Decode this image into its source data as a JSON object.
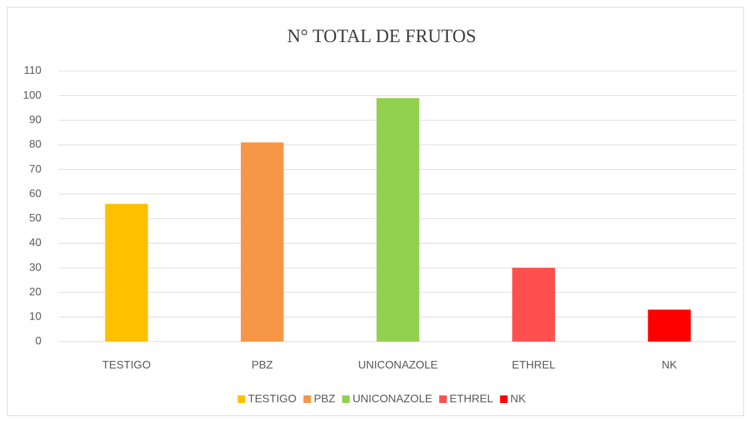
{
  "chart_data": {
    "type": "bar",
    "title": "N° TOTAL DE FRUTOS",
    "categories": [
      "TESTIGO",
      "PBZ",
      "UNICONAZOLE",
      "ETHREL",
      "NK"
    ],
    "values": [
      56,
      81,
      99,
      30,
      13
    ],
    "colors": [
      "#ffc000",
      "#f79646",
      "#92d050",
      "#ff5050",
      "#ff0000"
    ],
    "ylim": [
      0,
      110
    ],
    "yticks": [
      0,
      10,
      20,
      30,
      40,
      50,
      60,
      70,
      80,
      90,
      100,
      110
    ],
    "grid": true,
    "legend": "bottom"
  }
}
